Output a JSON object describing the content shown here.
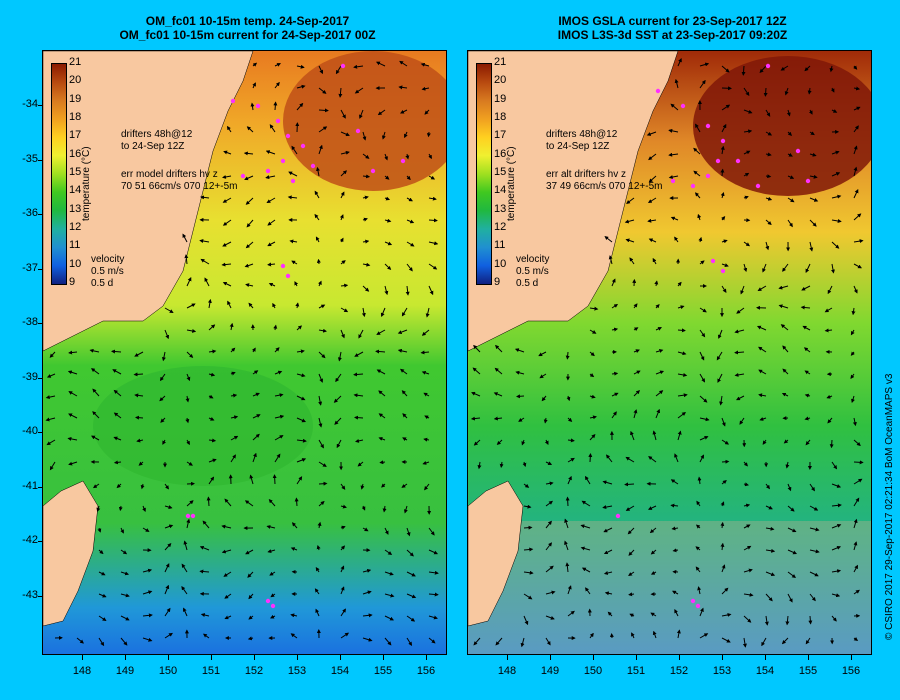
{
  "titles": {
    "left": [
      "OM_fc01 10-15m temp. 24-Sep-2017",
      "OM_fc01 10-15m current for 24-Sep-2017 00Z"
    ],
    "right": [
      "IMOS GSLA current for 23-Sep-2017 12Z",
      "IMOS L3S-3d SST at 23-Sep-2017 09:20Z"
    ]
  },
  "axes": {
    "latitudes": [
      "-34",
      "-35",
      "-36",
      "-37",
      "-38",
      "-39",
      "-40",
      "-41",
      "-42",
      "-43"
    ],
    "longitudes": [
      "148",
      "149",
      "150",
      "151",
      "152",
      "153",
      "154",
      "155",
      "156"
    ]
  },
  "colorbar": {
    "title": "temperature (°C)",
    "labels": [
      "21",
      "20",
      "19",
      "18",
      "17",
      "16",
      "15",
      "14",
      "13",
      "12",
      "11",
      "10",
      "9"
    ],
    "colors": [
      "#8b1a00",
      "#b84a10",
      "#d87a20",
      "#f0a020",
      "#ffd020",
      "#f0f030",
      "#a0e020",
      "#40c820",
      "#20b840",
      "#20b0a0",
      "#2090d0",
      "#1060e0",
      "#102080"
    ]
  },
  "left_annotations": {
    "drifters": "drifters 48h@12",
    "drifters_date": "to 24-Sep 12Z",
    "err": "err model drifters hv z",
    "err_vals": "70 51 66cm/s 070 12+-5m",
    "velocity": "velocity",
    "speed": "0.5 m/s",
    "duration": "0.5 d"
  },
  "right_annotations": {
    "drifters": "drifters 48h@12",
    "drifters_date": "to 24-Sep 12Z",
    "err": "err alt drifters hv z",
    "err_vals": "37 49 66cm/s 070 12+-5m",
    "velocity": "velocity",
    "speed": "0.5 m/s",
    "duration": "0.5 d"
  },
  "credit": "© CSIRO 2017   29-Sep-2017 02:21:34 BoM OceanMAPS v3"
}
